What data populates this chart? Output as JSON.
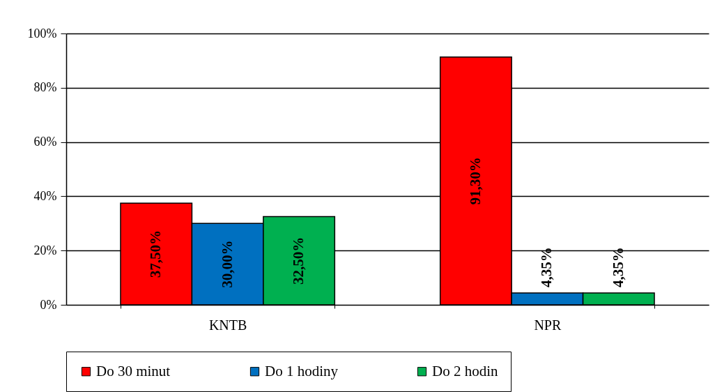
{
  "chart_data": {
    "type": "bar",
    "categories": [
      "KNTB",
      "NPR"
    ],
    "series": [
      {
        "name": "Do 30 minut",
        "color": "#ff0000",
        "values": [
          37.5,
          91.3
        ],
        "value_labels": [
          "37,50%",
          "91,30%"
        ]
      },
      {
        "name": "Do 1 hodiny",
        "color": "#0070c0",
        "values": [
          30.0,
          4.35
        ],
        "value_labels": [
          "30,00%",
          "4,35%"
        ]
      },
      {
        "name": "Do 2 hodin",
        "color": "#00b050",
        "values": [
          32.5,
          4.35
        ],
        "value_labels": [
          "32,50%",
          "4,35%"
        ]
      }
    ],
    "ylim": [
      0,
      100
    ],
    "yticks": [
      {
        "value": 0,
        "label": "0%"
      },
      {
        "value": 20,
        "label": "20%"
      },
      {
        "value": 40,
        "label": "40%"
      },
      {
        "value": 60,
        "label": "60%"
      },
      {
        "value": 80,
        "label": "80%"
      },
      {
        "value": 100,
        "label": "100%"
      }
    ],
    "grid": "y",
    "legend": "bottom"
  }
}
